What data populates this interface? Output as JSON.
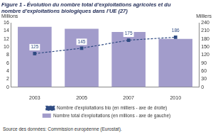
{
  "chart_data": {
    "type": "bar",
    "title": [
      "Figure 1 - Évolution du nombre total d'exploitations agricoles et du",
      "nombre d'exploitations biologiques dans l'UE (27)"
    ],
    "y_label": "Millions",
    "y2_label": "Milliers",
    "annotations": [
      "Source des données: Commission européenne (Eurostat)."
    ],
    "categories": [
      "2003",
      "2005",
      "2007",
      "2010"
    ],
    "series": [
      {
        "name": "Nombre total d'exploitations (en millions - axe de gauche)",
        "type": "bar",
        "color": "#a29ccb",
        "values": [
          15.0,
          14.5,
          13.7,
          12.0
        ]
      },
      {
        "name": "Nombre d'exploitations bio (en milliers - axe de droite)",
        "type": "line",
        "axis": "y2",
        "color": "#2f4b82",
        "marker": "square",
        "line_style": "dashed",
        "data_labels": true,
        "values": [
          125,
          145,
          175,
          186
        ]
      }
    ],
    "ylim": [
      0,
      16
    ],
    "yticks": [
      0,
      2,
      4,
      6,
      8,
      10,
      12,
      14,
      16
    ],
    "y2lim": [
      0,
      240
    ],
    "y2ticks": [
      0,
      30,
      60,
      90,
      120,
      150,
      180,
      210,
      240
    ],
    "grid": false,
    "legend": "bottom"
  }
}
